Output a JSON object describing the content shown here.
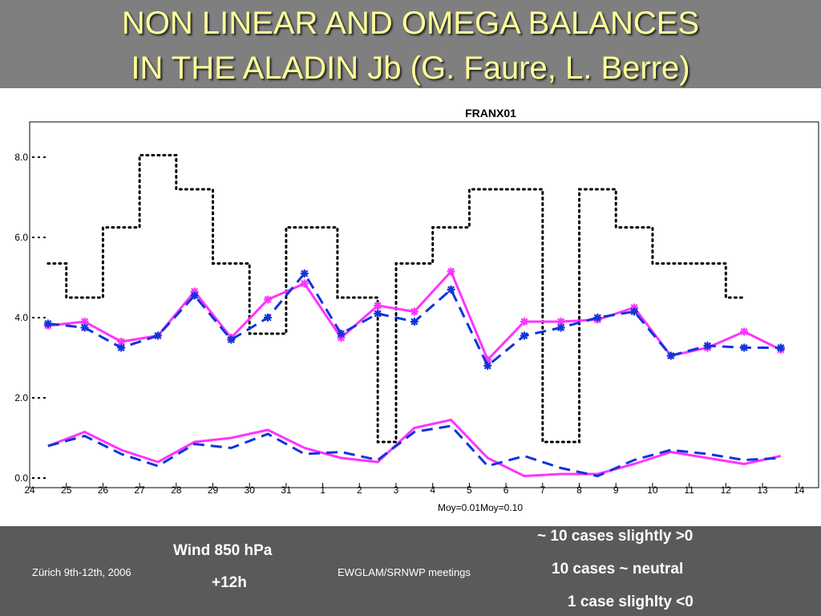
{
  "slide": {
    "title_line1": "NON LINEAR AND OMEGA BALANCES",
    "title_line2": "IN THE ALADIN Jb (G. Faure, L. Berre)"
  },
  "footer": {
    "location_date": "Zürich 9th-12th, 2006",
    "field": "Wind 850 hPa",
    "lead_time": "+12h",
    "meeting": "EWGLAM/SRNWP meetings",
    "note1": "~ 10 cases slightly >0",
    "note2": "10 cases ~ neutral",
    "note3": "1 case slighlty <0"
  },
  "chart_data": {
    "type": "line",
    "title": "FRANX01",
    "xlabel": "Moy=0.01Moy=0.10",
    "ylabel": "",
    "ylim": [
      0,
      9
    ],
    "xlim": [
      0,
      21.5
    ],
    "grid": false,
    "yticks": [
      "0.0",
      "2.0",
      "4.0",
      "6.0",
      "8.0"
    ],
    "xticks": [
      "24",
      "25",
      "26",
      "27",
      "28",
      "29",
      "30",
      "31",
      "1",
      "2",
      "3",
      "4",
      "5",
      "6",
      "7",
      "8",
      "9",
      "10",
      "11",
      "12",
      "13",
      "14"
    ],
    "series": [
      {
        "style": "dotted-step",
        "color": "#000000",
        "steps": [
          [
            0.5,
            5.35
          ],
          [
            1.0,
            4.5
          ],
          [
            2.0,
            6.25
          ],
          [
            3.0,
            8.05
          ],
          [
            4.0,
            7.2
          ],
          [
            5.0,
            5.35
          ],
          [
            6.0,
            3.6
          ],
          [
            7.0,
            6.25
          ],
          [
            8.4,
            4.5
          ],
          [
            9.5,
            0.9
          ],
          [
            10.0,
            5.35
          ],
          [
            11.0,
            6.25
          ],
          [
            12.0,
            7.2
          ],
          [
            14.0,
            0.9
          ],
          [
            15.0,
            7.2
          ],
          [
            16.0,
            6.25
          ],
          [
            17.0,
            5.35
          ],
          [
            19.0,
            4.5
          ],
          [
            19.5,
            4.5
          ]
        ]
      },
      {
        "style": "solid",
        "color": "#ff33ff",
        "marker": "star",
        "x": [
          0.5,
          1.5,
          2.5,
          3.5,
          4.5,
          5.5,
          6.5,
          7.5,
          8.5,
          9.5,
          10.5,
          11.5,
          12.5,
          13.5,
          14.5,
          15.5,
          16.5,
          17.5,
          18.5,
          19.5,
          20.5
        ],
        "y": [
          3.8,
          3.9,
          3.4,
          3.55,
          4.65,
          3.5,
          4.45,
          4.85,
          3.5,
          4.3,
          4.15,
          5.15,
          2.95,
          3.9,
          3.9,
          3.95,
          4.25,
          3.05,
          3.25,
          3.65,
          3.2
        ]
      },
      {
        "style": "dashed",
        "color": "#1133dd",
        "marker": "star",
        "x": [
          0.5,
          1.5,
          2.5,
          3.5,
          4.5,
          5.5,
          6.5,
          7.5,
          8.5,
          9.5,
          10.5,
          11.5,
          12.5,
          13.5,
          14.5,
          15.5,
          16.5,
          17.5,
          18.5,
          19.5,
          20.5
        ],
        "y": [
          3.85,
          3.75,
          3.25,
          3.55,
          4.55,
          3.45,
          4.0,
          5.1,
          3.6,
          4.1,
          3.9,
          4.7,
          2.8,
          3.55,
          3.75,
          4.0,
          4.15,
          3.05,
          3.3,
          3.25,
          3.25
        ]
      },
      {
        "style": "solid",
        "color": "#ff33ff",
        "x": [
          0.5,
          1.5,
          2.5,
          3.5,
          4.5,
          5.5,
          6.5,
          7.5,
          8.5,
          9.5,
          10.5,
          11.5,
          12.5,
          13.5,
          14.5,
          15.5,
          16.5,
          17.5,
          18.5,
          19.5,
          20.5
        ],
        "y": [
          0.8,
          1.15,
          0.7,
          0.4,
          0.9,
          1.0,
          1.2,
          0.75,
          0.5,
          0.4,
          1.25,
          1.45,
          0.5,
          0.05,
          0.1,
          0.1,
          0.35,
          0.65,
          0.5,
          0.35,
          0.55
        ]
      },
      {
        "style": "dashed",
        "color": "#1133dd",
        "x": [
          0.5,
          1.5,
          2.5,
          3.5,
          4.5,
          5.5,
          6.5,
          7.5,
          8.5,
          9.5,
          10.5,
          11.5,
          12.5,
          13.5,
          14.5,
          15.5,
          16.5,
          17.5,
          18.5,
          19.5,
          20.5
        ],
        "y": [
          0.8,
          1.05,
          0.6,
          0.3,
          0.85,
          0.75,
          1.1,
          0.6,
          0.65,
          0.45,
          1.15,
          1.3,
          0.3,
          0.55,
          0.25,
          0.05,
          0.45,
          0.7,
          0.6,
          0.45,
          0.5
        ]
      }
    ]
  }
}
